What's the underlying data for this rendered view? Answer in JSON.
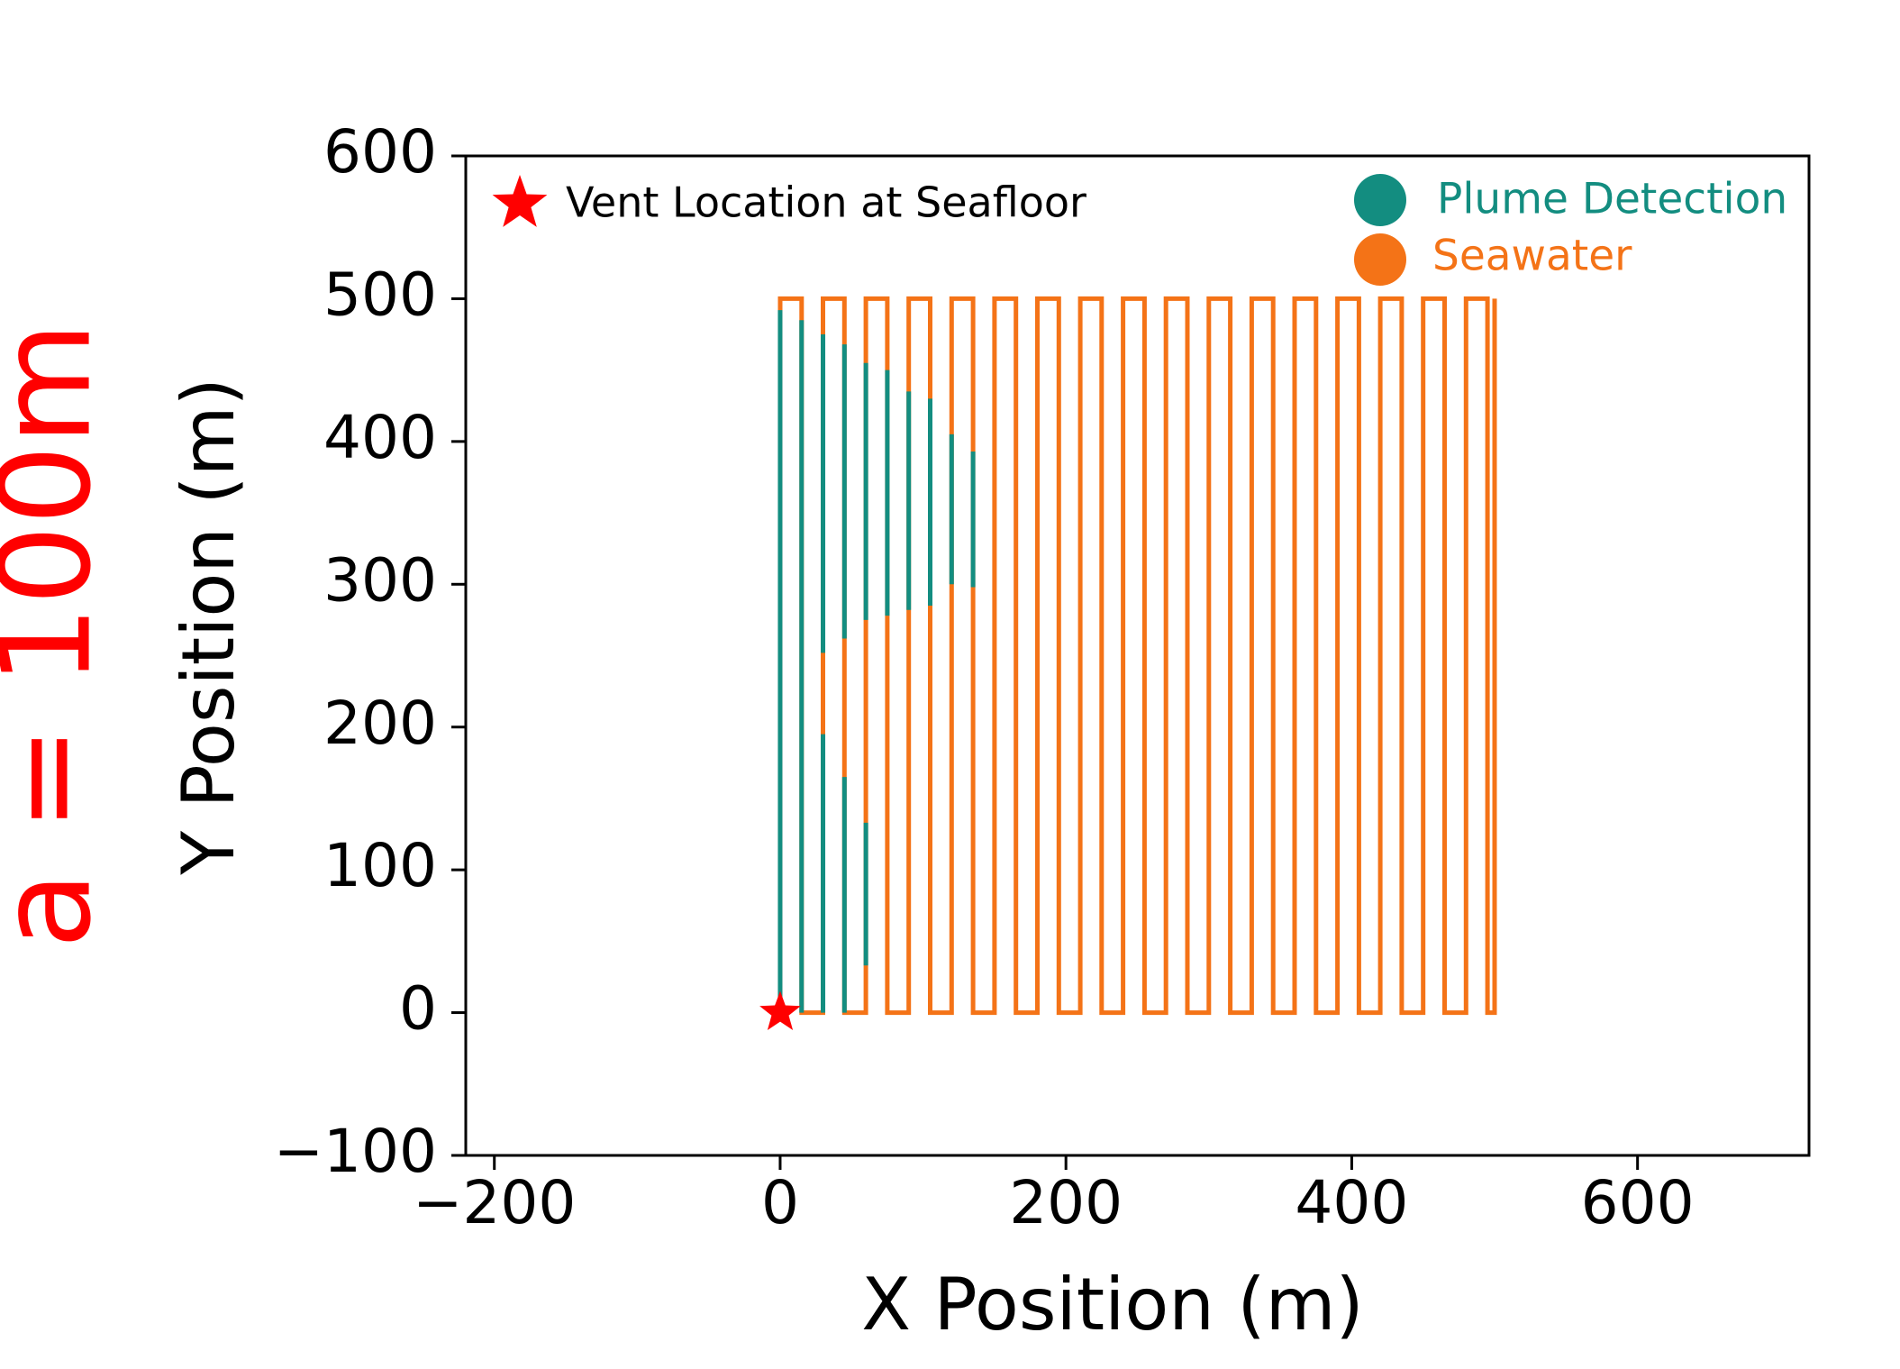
{
  "side_label": "a = 100m",
  "colors": {
    "plume": "#138d80",
    "seawater": "#f47317",
    "vent": "#ff0000",
    "side_label": "#ff0000"
  },
  "chart_data": {
    "type": "line",
    "title": "",
    "xlabel": "X Position (m)",
    "ylabel": "Y Position (m)",
    "xlim": [
      -220,
      720
    ],
    "ylim": [
      -100,
      600
    ],
    "xticks": [
      -200,
      0,
      200,
      400,
      600
    ],
    "yticks": [
      -100,
      0,
      100,
      200,
      300,
      400,
      500,
      600
    ],
    "xtick_labels": [
      "−200",
      "0",
      "200",
      "400",
      "600"
    ],
    "ytick_labels": [
      "−100",
      "0",
      "100",
      "200",
      "300",
      "400",
      "500",
      "600"
    ],
    "grid": false,
    "lawnmower": {
      "x_start": 0,
      "x_end": 500,
      "track_spacing": 15,
      "y_min": 0,
      "y_max": 500
    },
    "plume_detection_segments": [
      {
        "x": 0,
        "y": [
          0,
          492
        ]
      },
      {
        "x": 15,
        "y": [
          0,
          485
        ]
      },
      {
        "x": 30,
        "y": [
          0,
          195
        ]
      },
      {
        "x": 30,
        "y": [
          252,
          475
        ]
      },
      {
        "x": 45,
        "y": [
          0,
          165
        ]
      },
      {
        "x": 45,
        "y": [
          262,
          468
        ]
      },
      {
        "x": 60,
        "y": [
          33,
          133
        ]
      },
      {
        "x": 60,
        "y": [
          275,
          455
        ]
      },
      {
        "x": 75,
        "y": [
          278,
          450
        ]
      },
      {
        "x": 90,
        "y": [
          282,
          435
        ]
      },
      {
        "x": 105,
        "y": [
          285,
          430
        ]
      },
      {
        "x": 120,
        "y": [
          300,
          405
        ]
      },
      {
        "x": 135,
        "y": [
          298,
          393
        ]
      }
    ],
    "vent": {
      "x": 0,
      "y": 0,
      "label": "Vent Location at Seafloor"
    },
    "series": [
      {
        "name": "Plume Detection",
        "color": "#138d80"
      },
      {
        "name": "Seawater",
        "color": "#f47317"
      }
    ]
  }
}
